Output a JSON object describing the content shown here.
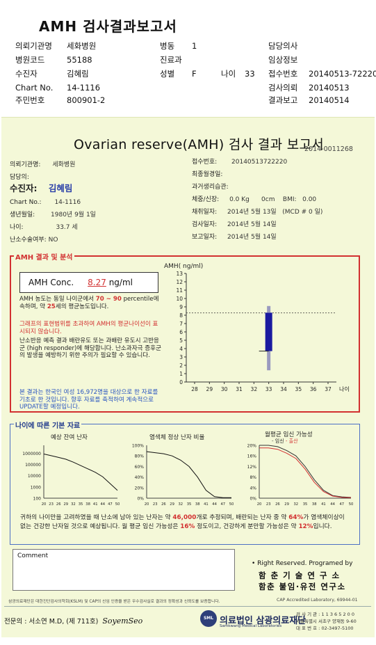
{
  "header": {
    "title": "AMH 검사결과보고서",
    "rows": [
      [
        "의뢰기관명",
        "세화병원",
        "병동",
        "1",
        "",
        "",
        "담당의사",
        ""
      ],
      [
        "병원코드",
        "55188",
        "진료과",
        "",
        "",
        "",
        "임상정보",
        ""
      ],
      [
        "수진자",
        "김혜림",
        "성별",
        "F",
        "나이",
        "33",
        "접수번호",
        "20140513-72220"
      ],
      [
        "Chart No.",
        "14-1116",
        "",
        "",
        "",
        "",
        "검사의뢰",
        "20140513"
      ],
      [
        "주민번호",
        "800901-2",
        "",
        "",
        "",
        "",
        "결과보고",
        "20140514"
      ]
    ]
  },
  "report": {
    "title": "Ovarian reserve(AMH) 검사 결과 보고서",
    "doc_no": "2014-0011268",
    "left_info": [
      {
        "label": "의뢰기관명:",
        "value": "세화병원"
      },
      {
        "label": "담당의:",
        "value": ""
      },
      {
        "label": "수진자:",
        "value": "김혜림"
      },
      {
        "label": "Chart No.:",
        "value": "14-1116"
      },
      {
        "label": "생년월일:",
        "value": "1980년 9월 1일"
      },
      {
        "label": "나이:",
        "value": "33.7 세"
      },
      {
        "label": "난소수술여부:",
        "value": "NO"
      }
    ],
    "right_info": [
      {
        "label": "접수번호:",
        "value": "20140513722220"
      },
      {
        "label": "최종월경일:",
        "value": ""
      },
      {
        "label": "과거생리습관:",
        "value": ""
      },
      {
        "label": "체중/신장:",
        "value": "0.0 Kg      0cm    BMI:   0.00"
      },
      {
        "label": "채취일자:",
        "value": "2014년 5월 13일   (MCD # 0 일)"
      },
      {
        "label": "검사일자:",
        "value": "2014년 5월 14일"
      },
      {
        "label": "보고일자:",
        "value": "2014년 5월 14일"
      }
    ],
    "amh_section_label": "AMH 결과 및 분석",
    "conc_label": "AMH Conc.",
    "conc_value": "8.27",
    "conc_unit": "ng/ml",
    "para1": {
      "a": "AMH 농도는 동일 나이군에서",
      "range": "70 ~ 90",
      "b": "percentile에 속하며, 약",
      "age": "25",
      "c": "세의 평균농도입니다."
    },
    "para2": "그래프의 표현범위를 초과하여 AMH의 평균나이선이 표시되지 않습니다.",
    "para3": "난소반응 예측 결과 배란유도 또는 과배란 유도시 고반응군 (high responder)에 해당합니다. 난소과자극 증후군의 발생을 예방하기 위한 주의가 필요할 수 있습니다.",
    "para4": "본 결과는 한국인 여성 16,972명을 대상으로 한 자료를 기초로 한 것입니다. 향후 자료를 축적하여 계속적으로 UPDATE할 예정입니다.",
    "age_section_label": "나이에 따른 기본 자료",
    "mini_titles": [
      "예상 잔여 난자",
      "염색체 정상 난자 비율",
      "월평균 임신 가능성"
    ],
    "legend_preg": "임신",
    "legend_birth": "출산",
    "summary": {
      "a": "귀하의 나이만을 고려하였을 때 난소에 남아 있는 난자는 약",
      "eggs": "46,000",
      "b": "개로 추정되며, 배란되는 난자 중 약",
      "pct1": "64%",
      "c": "가 염색체이상이 없는 건강한 난자일 것으로 예상됩니다. 월 평균 임신 가능성은",
      "pct2": "16%",
      "d": "정도이고, 건강하게 분만할 가능성은 약",
      "pct3": "12%",
      "e": "입니다."
    },
    "comment_label": "Comment",
    "rights": "• Right Reserved. Programed by",
    "inst1": "함 춘 기 술 연 구 소",
    "inst2": "함춘 불임·유전 연구소",
    "footnote": "삼광의료재단은 대한진단검사의학회(KSLM) 및 CAP의 신임 인증을 받은 우수검사실로 결과의 정확성과 신뢰도를 보증합니다.",
    "cap": "CAP   Accredited   Laboratory,   69944-01",
    "doctor": "전문의 : 서소연 M.D, (제 711호)",
    "signature": "SoyemSeo",
    "lab_logo": "SML",
    "lab_name": "의료법인 삼광의료재단",
    "lab_name_en": "Samkwang Medical Laboratories",
    "lab_info": [
      "검 사 기 관 : 1 1 3 6 5 2 0 0",
      "서울특별시 서초구 양재동 9-60",
      "대 표 번 호 : 02-3497-5100"
    ]
  },
  "chart_data": [
    {
      "type": "bar",
      "title": "",
      "ylabel": "AMH( ng/ml)",
      "xlabel": "나이",
      "x": [
        28,
        29,
        30,
        31,
        32,
        33,
        34,
        35,
        36,
        37
      ],
      "ylim": [
        0,
        13
      ],
      "yticks": [
        0,
        1,
        2,
        3,
        4,
        5,
        6,
        7,
        8,
        9,
        10,
        11,
        12,
        13
      ],
      "reference_line": 8.27,
      "bars": [
        {
          "x": 33,
          "low": 3.7,
          "high": 8.3,
          "color": "#1a1aa0"
        },
        {
          "x": 33,
          "low": 1.4,
          "high": 3.7,
          "color": "#9a9abf"
        },
        {
          "x": 33,
          "low": 8.3,
          "high": 9.1,
          "color": "#9a9abf"
        }
      ]
    },
    {
      "type": "line",
      "title": "예상 잔여 난자",
      "log_scale": true,
      "yticks": [
        "100",
        "1000",
        "10000",
        "100000",
        "1000000"
      ],
      "x": [
        20,
        23,
        26,
        29,
        32,
        35,
        38,
        41,
        44,
        47,
        50
      ],
      "y": [
        850000,
        600000,
        420000,
        290000,
        160000,
        80000,
        40000,
        20000,
        8000,
        2000,
        500
      ]
    },
    {
      "type": "line",
      "title": "염색체 정상 난자 비율",
      "yticks": [
        "0%",
        "20%",
        "40%",
        "60%",
        "80%",
        "100%"
      ],
      "ylim": [
        0,
        100
      ],
      "x": [
        20,
        23,
        26,
        29,
        32,
        35,
        38,
        41,
        44,
        47,
        50
      ],
      "y": [
        88,
        86,
        84,
        80,
        72,
        60,
        40,
        15,
        3,
        1,
        1
      ]
    },
    {
      "type": "line",
      "title": "월평균 임신 가능성",
      "yticks": [
        "0%",
        "4%",
        "8%",
        "12%",
        "16%",
        "20%"
      ],
      "ylim": [
        0,
        20
      ],
      "x": [
        20,
        23,
        26,
        29,
        32,
        35,
        38,
        41,
        44,
        47,
        50
      ],
      "series": [
        {
          "name": "임신",
          "y": [
            20,
            20,
            19.5,
            18,
            16,
            12,
            7,
            3,
            1,
            0.5,
            0.3
          ],
          "color": "#333333"
        },
        {
          "name": "출산",
          "y": [
            19,
            19,
            18.5,
            17,
            15,
            11,
            6,
            2.5,
            0.8,
            0.3,
            0.2
          ],
          "color": "#d23030"
        }
      ]
    }
  ]
}
